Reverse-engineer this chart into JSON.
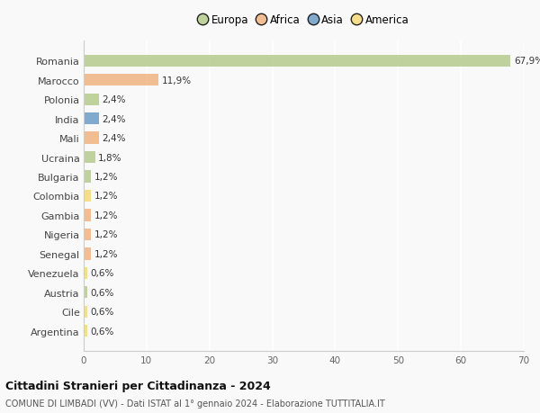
{
  "categories": [
    "Romania",
    "Marocco",
    "Polonia",
    "India",
    "Mali",
    "Ucraina",
    "Bulgaria",
    "Colombia",
    "Gambia",
    "Nigeria",
    "Senegal",
    "Venezuela",
    "Austria",
    "Cile",
    "Argentina"
  ],
  "values": [
    67.9,
    11.9,
    2.4,
    2.4,
    2.4,
    1.8,
    1.2,
    1.2,
    1.2,
    1.2,
    1.2,
    0.6,
    0.6,
    0.6,
    0.6
  ],
  "labels": [
    "67,9%",
    "11,9%",
    "2,4%",
    "2,4%",
    "2,4%",
    "1,8%",
    "1,2%",
    "1,2%",
    "1,2%",
    "1,2%",
    "1,2%",
    "0,6%",
    "0,6%",
    "0,6%",
    "0,6%"
  ],
  "bar_colors": [
    "#b5cc8e",
    "#f0b482",
    "#b5cc8e",
    "#6d9dc5",
    "#f0b482",
    "#b5cc8e",
    "#b5cc8e",
    "#f5d87a",
    "#f0b482",
    "#f0b482",
    "#f0b482",
    "#f5d87a",
    "#b5cc8e",
    "#f5d87a",
    "#f5d87a"
  ],
  "continent_colors": {
    "Europa": "#b5cc8e",
    "Africa": "#f0b482",
    "Asia": "#6d9dc5",
    "America": "#f5d87a"
  },
  "legend_labels": [
    "Europa",
    "Africa",
    "Asia",
    "America"
  ],
  "xlim": [
    0,
    70
  ],
  "xticks": [
    0,
    10,
    20,
    30,
    40,
    50,
    60,
    70
  ],
  "title": "Cittadini Stranieri per Cittadinanza - 2024",
  "subtitle": "COMUNE DI LIMBADI (VV) - Dati ISTAT al 1° gennaio 2024 - Elaborazione TUTTITALIA.IT",
  "bg_color": "#f9f9f9",
  "grid_color": "#ffffff"
}
